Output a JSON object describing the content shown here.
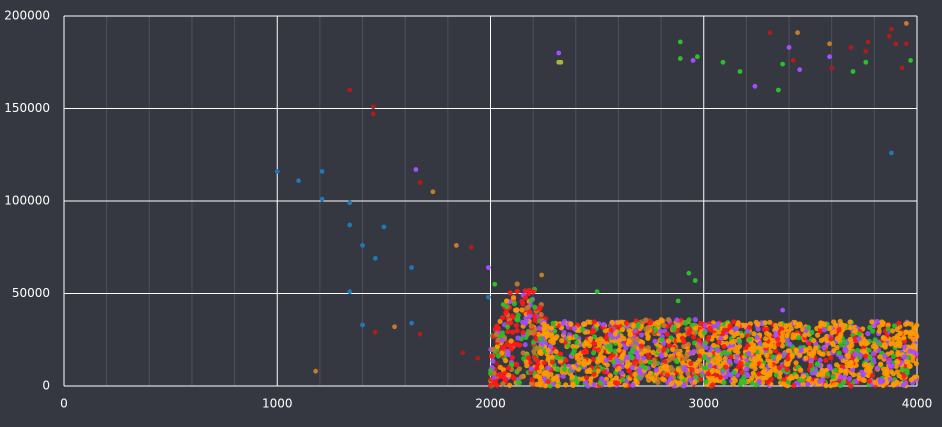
{
  "colors": {
    "background": "#353840",
    "grid_major": "#ffffff",
    "grid_minor": "#4d525c",
    "tick_label": "#ffffff",
    "blue": "#1f77b4",
    "red": "#ff1a1a",
    "darkred": "#b01c1c",
    "orange": "#ff9a00",
    "brown": "#c67a2b",
    "green": "#2bc02b",
    "purple": "#a64dff",
    "olive": "#a6b93a"
  },
  "chart_data": {
    "type": "scatter",
    "title": "",
    "xlabel": "",
    "ylabel": "",
    "xlim": [
      0,
      4000
    ],
    "ylim": [
      0,
      200000
    ],
    "x_ticks": [
      0,
      1000,
      2000,
      3000,
      4000
    ],
    "y_ticks": [
      0,
      50000,
      100000,
      150000,
      200000
    ],
    "x_tick_labels": [
      "0",
      "1000",
      "2000",
      "3000",
      "4000"
    ],
    "y_tick_labels": [
      "0",
      "50000",
      "100000",
      "150000",
      "200000"
    ],
    "x_minor_step": 200,
    "grid": true,
    "legend": "none",
    "series": [
      {
        "color": "blue",
        "points": [
          [
            1000,
            116000
          ],
          [
            1100,
            111000
          ],
          [
            1210,
            116000
          ],
          [
            1210,
            101000
          ],
          [
            1340,
            99000
          ],
          [
            1340,
            87000
          ],
          [
            1400,
            76000
          ],
          [
            1460,
            69000
          ],
          [
            1500,
            86000
          ],
          [
            1630,
            64000
          ],
          [
            1340,
            51000
          ],
          [
            1400,
            33000
          ],
          [
            1630,
            34000
          ],
          [
            1990,
            48000
          ],
          [
            3880,
            126000
          ]
        ]
      },
      {
        "color": "darkred",
        "points": [
          [
            1340,
            160000
          ],
          [
            1450,
            151000
          ],
          [
            1450,
            147000
          ],
          [
            1670,
            110000
          ],
          [
            1910,
            75000
          ],
          [
            1460,
            29000
          ],
          [
            1670,
            28000
          ],
          [
            1870,
            18000
          ],
          [
            1940,
            15000
          ],
          [
            2030,
            12000
          ],
          [
            3310,
            191000
          ],
          [
            3420,
            176000
          ],
          [
            3600,
            172000
          ],
          [
            3690,
            183000
          ],
          [
            3760,
            181000
          ],
          [
            3770,
            186000
          ],
          [
            3870,
            189000
          ],
          [
            3880,
            193000
          ],
          [
            3900,
            185000
          ],
          [
            3930,
            172000
          ],
          [
            3950,
            185000
          ]
        ]
      },
      {
        "color": "brown",
        "points": [
          [
            1180,
            8000
          ],
          [
            1550,
            32000
          ],
          [
            1730,
            105000
          ],
          [
            1840,
            76000
          ],
          [
            2240,
            60000
          ],
          [
            3440,
            191000
          ],
          [
            3590,
            185000
          ],
          [
            3950,
            196000
          ]
        ]
      },
      {
        "color": "green",
        "points": [
          [
            2020,
            55000
          ],
          [
            2060,
            44000
          ],
          [
            2080,
            32000
          ],
          [
            2500,
            51000
          ],
          [
            2880,
            46000
          ],
          [
            2890,
            186000
          ],
          [
            2890,
            177000
          ],
          [
            2930,
            61000
          ],
          [
            2960,
            57000
          ],
          [
            2970,
            178000
          ],
          [
            3090,
            175000
          ],
          [
            3170,
            170000
          ],
          [
            3350,
            160000
          ],
          [
            3370,
            174000
          ],
          [
            3700,
            170000
          ],
          [
            3760,
            175000
          ],
          [
            3970,
            176000
          ]
        ]
      },
      {
        "color": "purple",
        "points": [
          [
            1650,
            117000
          ],
          [
            1990,
            64000
          ],
          [
            2320,
            180000
          ],
          [
            2950,
            176000
          ],
          [
            3240,
            162000
          ],
          [
            3400,
            183000
          ],
          [
            3450,
            171000
          ],
          [
            3590,
            178000
          ],
          [
            3370,
            41000
          ]
        ]
      },
      {
        "color": "olive",
        "points": [
          [
            2320,
            175000
          ],
          [
            2330,
            175000
          ]
        ]
      }
    ],
    "dense_clusters": [
      {
        "x_range": [
          2000,
          2260
        ],
        "y_range": [
          0,
          57000
        ],
        "colors": [
          "red",
          "red",
          "purple",
          "green",
          "orange",
          "red",
          "brown"
        ]
      },
      {
        "x_range": [
          2230,
          2700
        ],
        "y_range": [
          0,
          35000
        ],
        "colors": [
          "orange",
          "orange",
          "orange",
          "red",
          "purple",
          "green"
        ]
      },
      {
        "x_range": [
          2650,
          3000
        ],
        "y_range": [
          0,
          36000
        ],
        "colors": [
          "orange",
          "purple",
          "green",
          "red",
          "orange",
          "brown"
        ]
      },
      {
        "x_range": [
          3000,
          4000
        ],
        "y_range": [
          0,
          35000
        ],
        "colors": [
          "orange",
          "purple",
          "green",
          "red",
          "orange",
          "orange"
        ]
      }
    ]
  }
}
